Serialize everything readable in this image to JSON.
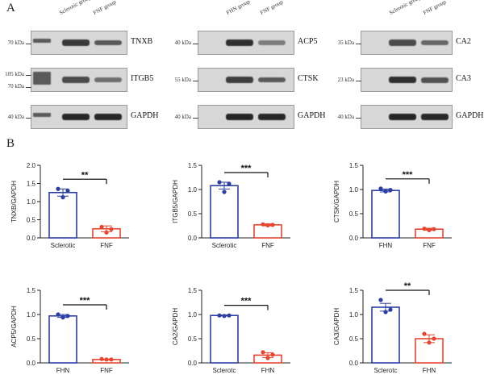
{
  "panel_labels": {
    "a": "A",
    "b": "B"
  },
  "blots": [
    {
      "id": "blot-1",
      "lanes": [
        "Sclerotic group",
        "FNF group"
      ],
      "rows": [
        {
          "protein": "TNXB",
          "kda": [
            "70 kDa"
          ],
          "left": 0.78,
          "right": 0.55
        },
        {
          "protein": "ITGB5",
          "kda": [
            "105 kDa",
            "70 kDa"
          ],
          "left": 0.65,
          "right": 0.4
        },
        {
          "protein": "GAPDH",
          "kda": [
            "40 kDa"
          ],
          "left": 0.9,
          "right": 0.9
        }
      ]
    },
    {
      "id": "blot-2",
      "lanes": [
        "FHN group",
        "FNF group"
      ],
      "rows": [
        {
          "protein": "ACP5",
          "kda": [
            "40 kDa"
          ],
          "left": 0.85,
          "right": 0.3
        },
        {
          "protein": "CTSK",
          "kda": [
            "55 kDa"
          ],
          "left": 0.75,
          "right": 0.55
        },
        {
          "protein": "GAPDH",
          "kda": [
            "40 kDa"
          ],
          "left": 0.92,
          "right": 0.9
        }
      ]
    },
    {
      "id": "blot-3",
      "lanes": [
        "Sclerotic group",
        "FNF group"
      ],
      "rows": [
        {
          "protein": "CA2",
          "kda": [
            "35 kDa"
          ],
          "left": 0.65,
          "right": 0.45
        },
        {
          "protein": "CA3",
          "kda": [
            "23 kDa"
          ],
          "left": 0.85,
          "right": 0.6
        },
        {
          "protein": "GAPDH",
          "kda": [
            "40 kDa"
          ],
          "left": 0.92,
          "right": 0.9
        }
      ]
    }
  ],
  "chart_data": [
    {
      "type": "bar",
      "ylabel": "TNXB/GAPDH",
      "categories": [
        "Sclerotic",
        "FNF"
      ],
      "values": [
        1.25,
        0.25
      ],
      "errors": [
        0.1,
        0.08
      ],
      "points": [
        [
          1.35,
          1.3,
          1.12
        ],
        [
          0.3,
          0.24,
          0.15
        ]
      ],
      "colors": [
        "#2b3ea3",
        "#e8452f"
      ],
      "ylim": [
        0,
        2.0
      ],
      "yticks": [
        "0.0",
        "0.5",
        "1.0",
        "1.5",
        "2.0"
      ],
      "significance": "**"
    },
    {
      "type": "bar",
      "ylabel": "ITGB5/GAPDH",
      "categories": [
        "Sclerotic",
        "FNF"
      ],
      "values": [
        1.08,
        0.27
      ],
      "errors": [
        0.07,
        0.02
      ],
      "points": [
        [
          1.15,
          1.12,
          0.95
        ],
        [
          0.28,
          0.27,
          0.26
        ]
      ],
      "colors": [
        "#2b3ea3",
        "#e8452f"
      ],
      "ylim": [
        0,
        1.5
      ],
      "yticks": [
        "0.0",
        "0.5",
        "1.0",
        "1.5"
      ],
      "significance": "***"
    },
    {
      "type": "bar",
      "ylabel": "CTSK/GAPDH",
      "categories": [
        "FHN",
        "FNF"
      ],
      "values": [
        0.98,
        0.18
      ],
      "errors": [
        0.03,
        0.02
      ],
      "points": [
        [
          1.02,
          0.99,
          0.96
        ],
        [
          0.19,
          0.18,
          0.16
        ]
      ],
      "colors": [
        "#2b3ea3",
        "#e8452f"
      ],
      "ylim": [
        0,
        1.5
      ],
      "yticks": [
        "0.0",
        "0.5",
        "1.0",
        "1.5"
      ],
      "significance": "***"
    },
    {
      "type": "bar",
      "ylabel": "ACP5/GAPDH",
      "categories": [
        "FHN",
        "FNF"
      ],
      "values": [
        0.97,
        0.07
      ],
      "errors": [
        0.03,
        0.01
      ],
      "points": [
        [
          1.0,
          0.97,
          0.94
        ],
        [
          0.08,
          0.07,
          0.07
        ]
      ],
      "colors": [
        "#2b3ea3",
        "#e8452f"
      ],
      "ylim": [
        0,
        1.5
      ],
      "yticks": [
        "0.0",
        "0.5",
        "1.0",
        "1.5"
      ],
      "significance": "***"
    },
    {
      "type": "bar",
      "ylabel": "CA2/GAPDH",
      "categories": [
        "Sclerotc",
        "FHN"
      ],
      "values": [
        0.98,
        0.16
      ],
      "errors": [
        0.01,
        0.05
      ],
      "points": [
        [
          0.98,
          0.98,
          0.97
        ],
        [
          0.22,
          0.17,
          0.1
        ]
      ],
      "colors": [
        "#2b3ea3",
        "#e8452f"
      ],
      "ylim": [
        0,
        1.5
      ],
      "yticks": [
        "0.0",
        "0.5",
        "1.0",
        "1.5"
      ],
      "significance": "***"
    },
    {
      "type": "bar",
      "ylabel": "CA3/GAPDH",
      "categories": [
        "Sclerotc",
        "FHN"
      ],
      "values": [
        1.15,
        0.5
      ],
      "errors": [
        0.08,
        0.08
      ],
      "points": [
        [
          1.3,
          1.1,
          1.05
        ],
        [
          0.6,
          0.5,
          0.42
        ]
      ],
      "colors": [
        "#2b3ea3",
        "#e8452f"
      ],
      "ylim": [
        0,
        1.5
      ],
      "yticks": [
        "0.0",
        "0.5",
        "1.0",
        "1.5"
      ],
      "significance": "**"
    }
  ]
}
